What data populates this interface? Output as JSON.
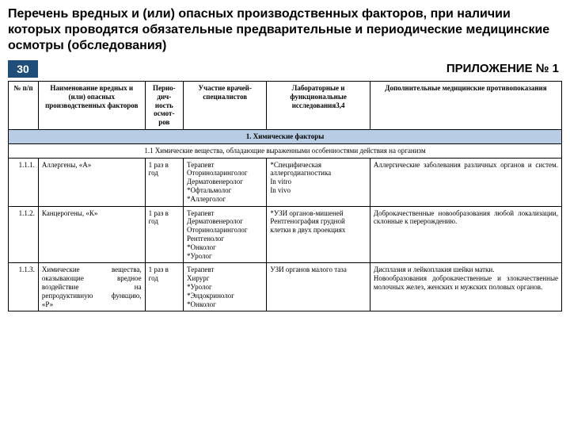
{
  "title": "Перечень вредных и (или) опасных производственных факторов, при наличии которых проводятся обязательные предварительные и периодические медицинские осмотры (обследования)",
  "slide_number": "30",
  "appendix": "ПРИЛОЖЕНИЕ № 1",
  "columns": {
    "num": "№ п/п",
    "name": "Наименование вредных и (или) опасных производственных факторов",
    "period": "Перио-дич-ность осмот-ров",
    "doctors": "Участие врачей-специалистов",
    "lab": "Лабораторные и функциональные исследования3,4",
    "contra": "Дополнительные медицинские противопоказания"
  },
  "section": "1.        Химические факторы",
  "subsection": "1.1 Химические вещества, обладающие выраженными особенностями действия на организм",
  "rows": [
    {
      "num": "1.1.1.",
      "name": "Аллергены, «А»",
      "period": "1 раз в год",
      "doctors": "Терапевт\nОториноларинголог\nДерматовенеролог\n*Офтальмолог\n*Аллерголог",
      "lab": "*Специфическая аллергодиагностика\nIn vitro\nIn vivo",
      "contra": "Аллергические заболевания различных органов и систем."
    },
    {
      "num": "1.1.2.",
      "name": "Канцерогены, «К»",
      "period": "1 раз в год",
      "doctors": "Терапевт\nДерматовенеролог\nОториноларинголог\nРентгенолог\n*Онколог\n*Уролог",
      "lab": "  *УЗИ органов-мишеней\nРентгенография грудной клетки в двух проекциях",
      "contra": "Доброкачественные новообразования любой локализации, склонные к перерождению."
    },
    {
      "num": "1.1.3.",
      "name_spread": "Химические вещества,\nоказывающие вредное\nвоздействие на\nрепродуктивную функцию,\n«Р»",
      "period": "1 раз в год",
      "doctors": "Терапевт\nХирург\n*Уролог\n*Эндокринолог\n*Онколог",
      "lab": "УЗИ органов малого таза",
      "contra": "Дисплазия и лейкоплакия шейки матки.\nНовообразования доброкачественные и злокачественные молочных желез, женских и мужских половых органов."
    }
  ],
  "colors": {
    "header_bar": "#1f4e79",
    "section_bg": "#b8cce4",
    "border": "#000000"
  }
}
